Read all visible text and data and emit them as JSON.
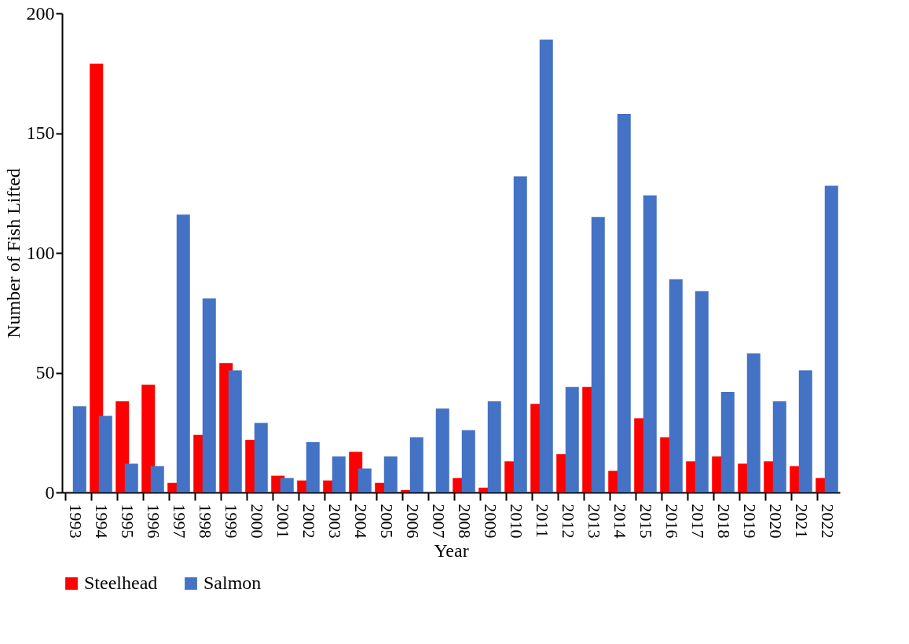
{
  "chart_data": {
    "type": "bar",
    "xlabel": "Year",
    "ylabel": "Number of Fish Lifted",
    "categories": [
      "1993",
      "1994",
      "1995",
      "1996",
      "1997",
      "1998",
      "1999",
      "2000",
      "2001",
      "2002",
      "2003",
      "2004",
      "2005",
      "2006",
      "2007",
      "2008",
      "2009",
      "2010",
      "2011",
      "2012",
      "2013",
      "2014",
      "2015",
      "2016",
      "2017",
      "2018",
      "2019",
      "2020",
      "2021",
      "2022"
    ],
    "series": [
      {
        "name": "Steelhead",
        "color": "#ff0000",
        "values": [
          0,
          179,
          38,
          45,
          4,
          24,
          54,
          22,
          7,
          5,
          5,
          17,
          4,
          1,
          0,
          6,
          2,
          13,
          37,
          16,
          44,
          9,
          31,
          23,
          13,
          15,
          12,
          13,
          11,
          6
        ]
      },
      {
        "name": "Salmon",
        "color": "#4472c4",
        "values": [
          36,
          32,
          12,
          11,
          116,
          81,
          51,
          29,
          6,
          21,
          15,
          10,
          15,
          23,
          35,
          26,
          38,
          132,
          189,
          44,
          115,
          158,
          124,
          89,
          84,
          42,
          58,
          38,
          51,
          128
        ]
      }
    ],
    "ylim": [
      0,
      200
    ],
    "yticks": [
      0,
      50,
      100,
      150,
      200
    ],
    "grid": false,
    "legend": "bottom"
  }
}
